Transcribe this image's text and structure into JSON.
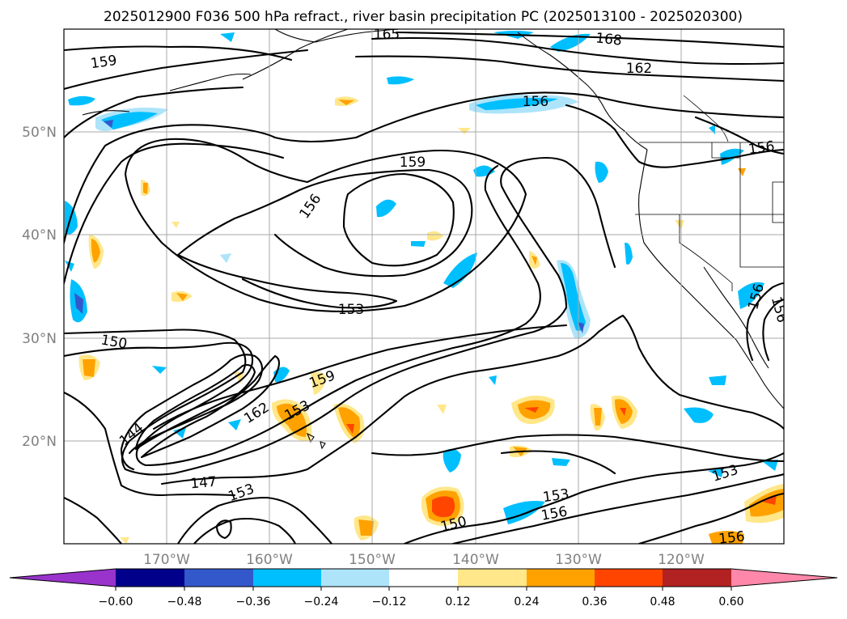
{
  "title": "2025012900 F036 500 hPa refract., river basin precipitation PC (2025013100 - 2025020300)",
  "lat_labels": [
    {
      "lat": 50,
      "text": "50°N"
    },
    {
      "lat": 40,
      "text": "40°N"
    },
    {
      "lat": 30,
      "text": "30°N"
    },
    {
      "lat": 20,
      "text": "20°N"
    }
  ],
  "lon_labels": [
    {
      "lon": -170,
      "text": "170°W"
    },
    {
      "lon": -160,
      "text": "160°W"
    },
    {
      "lon": -150,
      "text": "150°W"
    },
    {
      "lon": -140,
      "text": "140°W"
    },
    {
      "lon": -130,
      "text": "130°W"
    },
    {
      "lon": -120,
      "text": "120°W"
    }
  ],
  "map_extent": {
    "lon_min": -180,
    "lon_max": -110,
    "lat_min": 10,
    "lat_max": 60
  },
  "contour_labels": [
    "165",
    "168",
    "159",
    "162",
    "156",
    "159",
    "156",
    "156",
    "153",
    "150",
    "159",
    "162",
    "153",
    "144",
    "147",
    "153",
    "153",
    "156",
    "150",
    "153",
    "156",
    "156",
    "156"
  ],
  "colorbar": {
    "ticks": [
      "−0.60",
      "−0.48",
      "−0.36",
      "−0.24",
      "−0.12",
      "0.12",
      "0.24",
      "0.36",
      "0.48",
      "0.60"
    ],
    "colors": {
      "under": "#9933cc",
      "b1": "#00008b",
      "b2": "#3358cc",
      "b3": "#00bfff",
      "b4": "#ade4fa",
      "mid": "#ffffff",
      "o1": "#ffe78a",
      "o2": "#ffa200",
      "o3": "#ff4500",
      "o4": "#b22222",
      "over": "#ff88aa"
    }
  }
}
